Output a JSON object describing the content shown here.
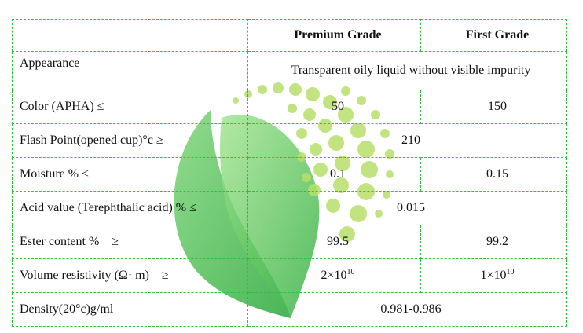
{
  "header": {
    "col_premium": "Premium Grade",
    "col_first": "First Grade"
  },
  "rows": [
    {
      "label": "Appearance",
      "value": "Transparent oily liquid without visible impurity"
    },
    {
      "label": "Color (APHA) ≤",
      "premium": "50",
      "first": "150"
    },
    {
      "label": "Flash Point(opened cup)°c ≥",
      "value": "210"
    },
    {
      "label": "Moisture % ≤",
      "premium": "0.1",
      "first": "0.15"
    },
    {
      "label": "Acid value (Terephthalic acid) % ≤",
      "value": "0.015"
    },
    {
      "label": "Ester content %    ≥",
      "premium": "99.5",
      "first": "99.2"
    },
    {
      "label": "Volume resistivity (Ω· m)    ≥",
      "premium_base": "2×10",
      "premium_exp": "10",
      "first_base": "1×10",
      "first_exp": "10"
    },
    {
      "label": "Density(20°c)g/ml",
      "value": "0.981-0.986"
    }
  ],
  "colors": {
    "grid": "#2fc13a",
    "leaf_dark": "#3fae43",
    "leaf_light": "#8fdc7a",
    "dots": "#b8e06a"
  },
  "watermark": {
    "icon": "leaf-logo-icon"
  }
}
